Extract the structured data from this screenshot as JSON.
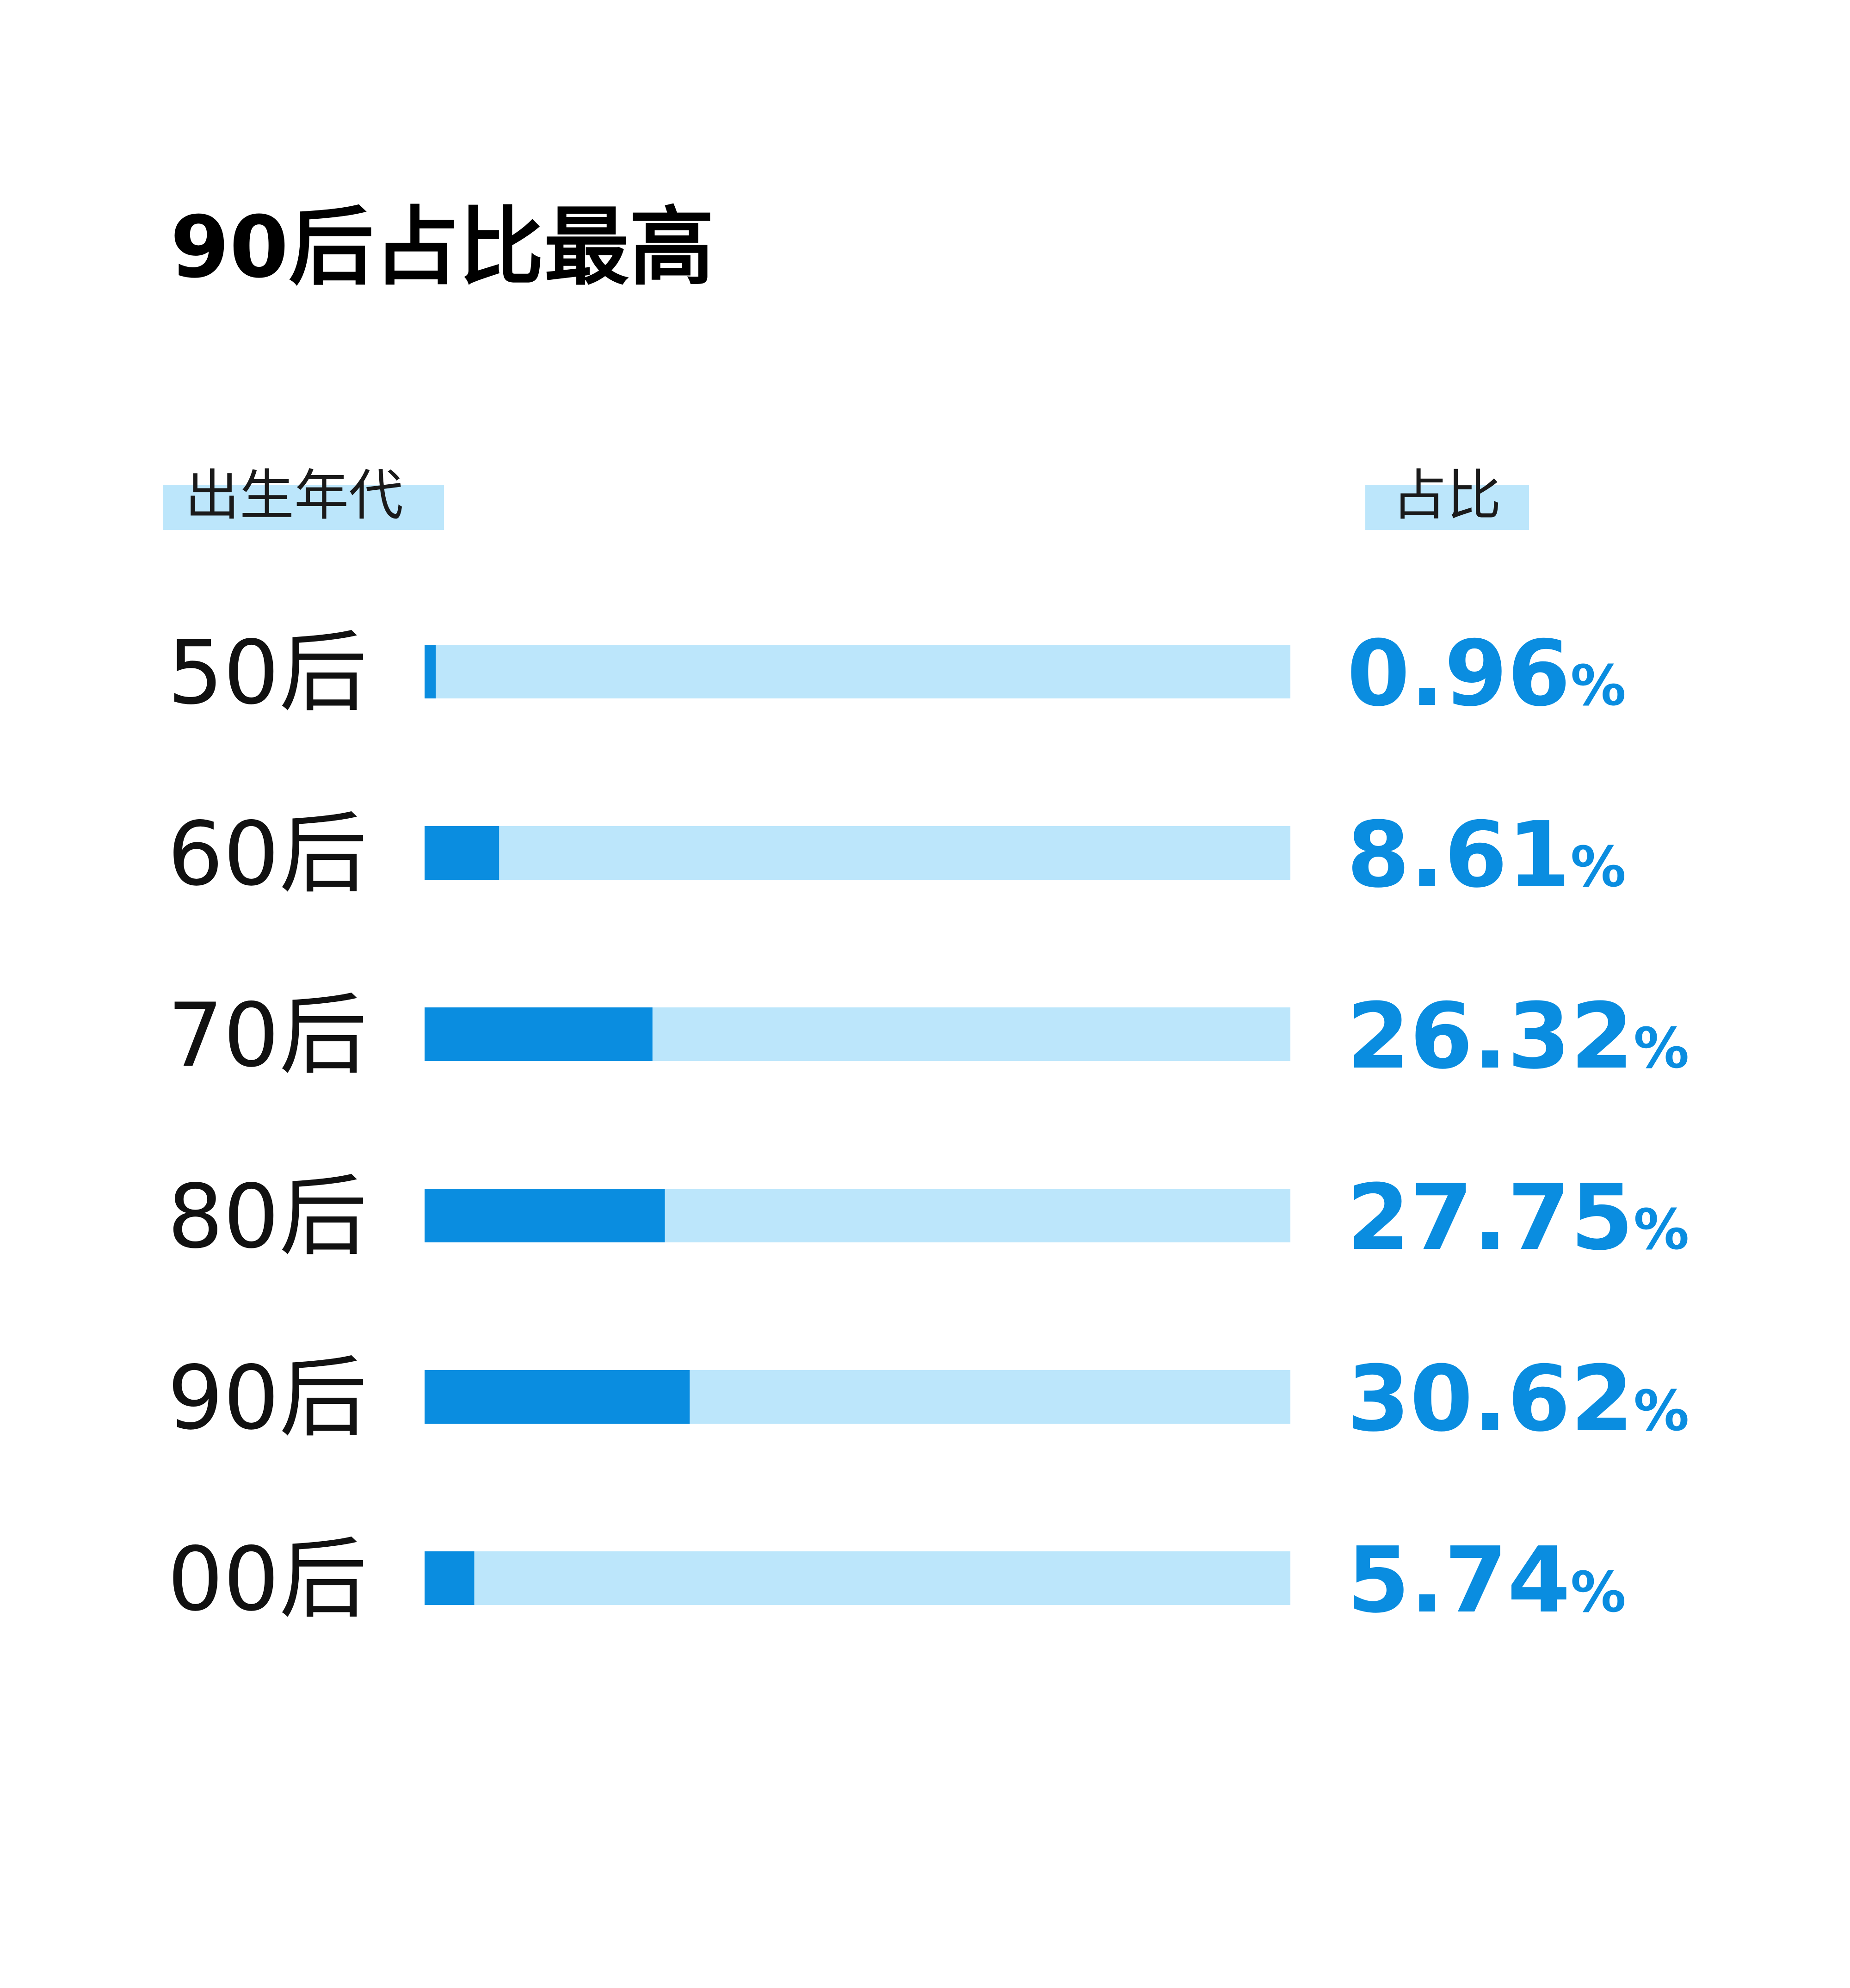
{
  "colors": {
    "accent": "#0a8de0",
    "track": "#bce6fb",
    "header_highlight": "#bce6fb",
    "title": "#000000",
    "label": "#111111"
  },
  "chart_data": {
    "type": "bar",
    "title": "90后占比最高",
    "column_headers": {
      "category": "出生年代",
      "value": "占比"
    },
    "categories": [
      "50后",
      "60后",
      "70后",
      "80后",
      "90后",
      "00后"
    ],
    "values": [
      0.96,
      8.61,
      26.32,
      27.75,
      30.62,
      5.74
    ],
    "value_labels": [
      "0.96",
      "8.61",
      "26.32",
      "27.75",
      "30.62",
      "5.74"
    ],
    "unit": "%",
    "xlim": [
      0,
      100
    ],
    "orientation": "horizontal",
    "grid": false
  }
}
